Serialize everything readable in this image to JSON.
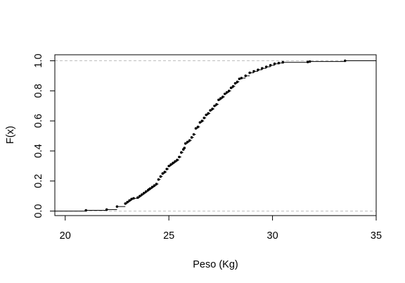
{
  "chart_data": {
    "type": "line",
    "subtype": "empirical-cdf-step",
    "title": "",
    "xlabel": "Peso (Kg)",
    "ylabel": "F(x)",
    "xlim": [
      19.5,
      35
    ],
    "ylim": [
      -0.03,
      1.04
    ],
    "x_ticks": [
      20,
      25,
      30,
      35
    ],
    "x_tick_labels": [
      "20",
      "25",
      "30",
      "35"
    ],
    "y_ticks": [
      0.0,
      0.2,
      0.4,
      0.6,
      0.8,
      1.0
    ],
    "y_tick_labels": [
      "0.0",
      "0.2",
      "0.4",
      "0.6",
      "0.8",
      "1.0"
    ],
    "reference_lines": [
      0,
      1
    ],
    "grid": false,
    "legend": "none",
    "colors": {
      "steps": "#000000",
      "reference": "#bebebe",
      "axes": "#000000"
    },
    "series": [
      {
        "x": [
          21.0,
          22.0,
          22.5,
          22.9,
          23.0,
          23.1,
          23.2,
          23.3,
          23.5,
          23.6,
          23.7,
          23.8,
          23.9,
          24.0,
          24.05,
          24.1,
          24.2,
          24.3,
          24.4,
          24.5,
          24.6,
          24.7,
          24.8,
          24.9,
          25.0,
          25.1,
          25.2,
          25.3,
          25.4,
          25.5,
          25.6,
          25.7,
          25.75,
          25.8,
          25.9,
          26.0,
          26.1,
          26.2,
          26.3,
          26.4,
          26.5,
          26.6,
          26.7,
          26.8,
          26.9,
          27.0,
          27.1,
          27.2,
          27.3,
          27.4,
          27.5,
          27.6,
          27.7,
          27.8,
          27.9,
          28.0,
          28.1,
          28.2,
          28.3,
          28.4,
          28.5,
          28.7,
          28.9,
          29.1,
          29.3,
          29.5,
          29.7,
          29.9,
          30.1,
          30.3,
          30.5,
          31.7,
          31.8,
          33.5
        ],
        "y": [
          0.005,
          0.01,
          0.03,
          0.05,
          0.06,
          0.07,
          0.08,
          0.085,
          0.09,
          0.1,
          0.11,
          0.12,
          0.13,
          0.14,
          0.145,
          0.15,
          0.16,
          0.17,
          0.18,
          0.21,
          0.23,
          0.25,
          0.26,
          0.28,
          0.3,
          0.31,
          0.32,
          0.33,
          0.34,
          0.36,
          0.39,
          0.41,
          0.42,
          0.45,
          0.46,
          0.47,
          0.49,
          0.51,
          0.55,
          0.56,
          0.59,
          0.6,
          0.62,
          0.64,
          0.65,
          0.67,
          0.68,
          0.7,
          0.71,
          0.74,
          0.75,
          0.76,
          0.78,
          0.79,
          0.8,
          0.82,
          0.83,
          0.85,
          0.86,
          0.88,
          0.885,
          0.9,
          0.92,
          0.93,
          0.94,
          0.95,
          0.96,
          0.97,
          0.98,
          0.985,
          0.99,
          0.992,
          0.995,
          1.0
        ]
      }
    ]
  }
}
